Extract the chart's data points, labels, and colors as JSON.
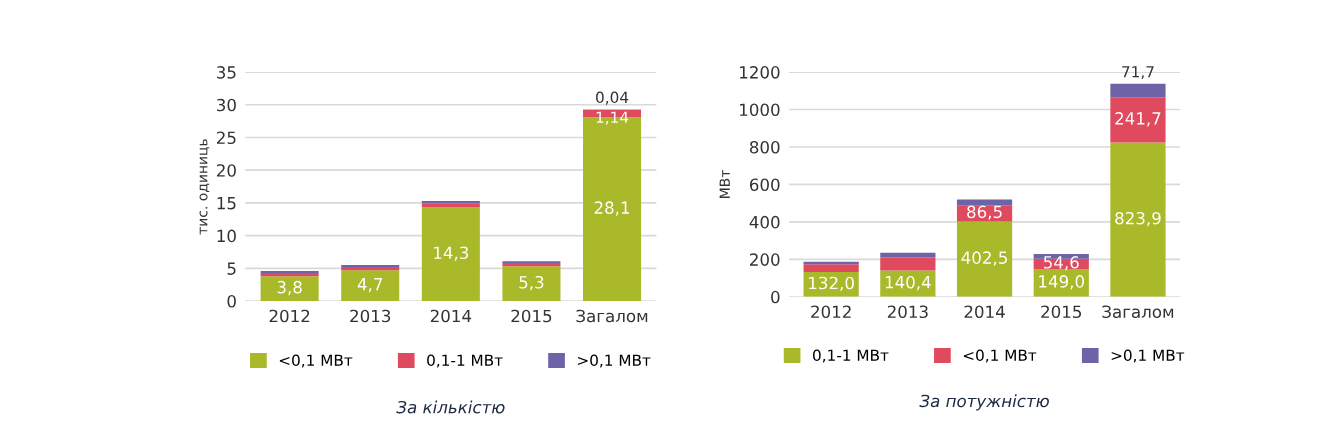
{
  "chart_data": [
    {
      "type": "bar",
      "stacked": true,
      "ylabel": "тис. одиниць",
      "categories": [
        "2012",
        "2013",
        "2014",
        "2015",
        "Загалом"
      ],
      "ylim": [
        0,
        35
      ],
      "yticks": [
        0,
        5,
        10,
        15,
        20,
        25,
        30,
        35
      ],
      "grid": "y",
      "legend": "bottom",
      "annotations": [
        "За кількістю"
      ],
      "series": [
        {
          "name": "<0,1 МВт",
          "color": "#a9b92a",
          "values": [
            3.8,
            4.7,
            14.3,
            5.3,
            28.1
          ],
          "value_labels": [
            "3,8",
            "4,7",
            "14,3",
            "5,3",
            "28,1"
          ]
        },
        {
          "name": "0,1-1 МВт",
          "color": "#e04a5f",
          "values": [
            0.5,
            0.5,
            0.6,
            0.5,
            1.14
          ],
          "value_labels": [
            null,
            null,
            null,
            null,
            "1,14"
          ]
        },
        {
          "name": ">0,1 МВт",
          "color": "#6e63a6",
          "values": [
            0.3,
            0.3,
            0.4,
            0.3,
            0.04
          ],
          "value_labels": [
            null,
            null,
            null,
            null,
            "0,04"
          ]
        }
      ]
    },
    {
      "type": "bar",
      "stacked": true,
      "ylabel": "МВт",
      "categories": [
        "2012",
        "2013",
        "2014",
        "2015",
        "Загалом"
      ],
      "ylim": [
        0,
        1200
      ],
      "yticks": [
        0,
        200,
        400,
        600,
        800,
        1000,
        1200
      ],
      "grid": "y",
      "legend": "bottom",
      "annotations": [
        "За потужністю"
      ],
      "series": [
        {
          "name": "0,1-1 МВт",
          "color": "#a9b92a",
          "values": [
            132.0,
            140.4,
            402.5,
            149.0,
            823.9
          ],
          "value_labels": [
            "132,0",
            "140,4",
            "402,5",
            "149,0",
            "823,9"
          ]
        },
        {
          "name": "<0,1 МВт",
          "color": "#e04a5f",
          "values": [
            42,
            70,
            86.5,
            54.6,
            241.7
          ],
          "value_labels": [
            null,
            null,
            "86,5",
            "54,6",
            "241,7"
          ]
        },
        {
          "name": ">0,1 МВт",
          "color": "#6e63a6",
          "values": [
            13,
            25,
            30,
            25,
            71.7
          ],
          "value_labels": [
            null,
            null,
            null,
            null,
            "71,7"
          ]
        }
      ]
    }
  ]
}
